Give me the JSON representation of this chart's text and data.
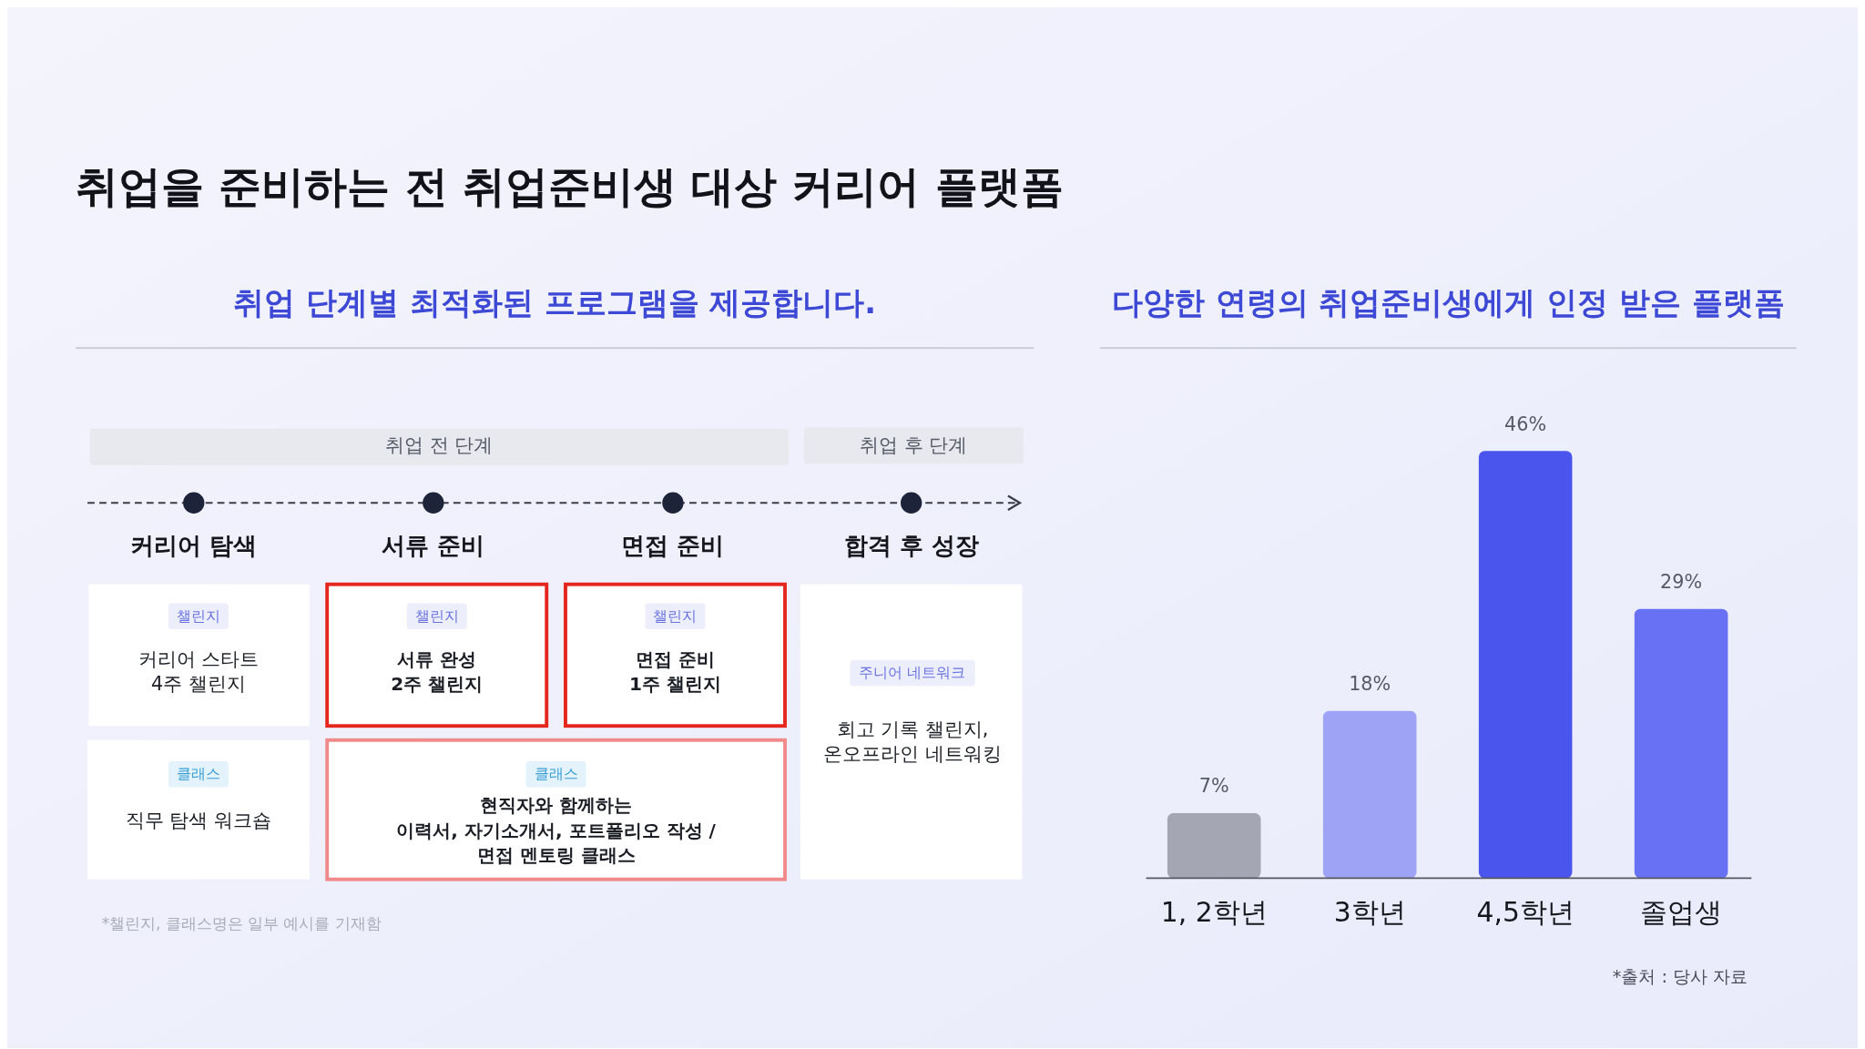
{
  "chart_data": [
    {
      "type": "other",
      "title": "취업을 준비하는 전 취업준비생 대상 커리어 플랫폼",
      "subtitle": "취업 단계별 최적화된 프로그램을 제공합니다.",
      "annotations": [
        "취업 전 단계",
        "취업 후 단계",
        "커리어 탐색",
        "서류 준비",
        "면접 준비",
        "합격 후 성장",
        "챌린지",
        "커리어 스타트\n4주 챌린지",
        "챌린지",
        "서류 완성\n2주 챌린지",
        "챌린지",
        "면접 준비\n1주 챌린지",
        "주니어 네트워크",
        "회고 기록 챌린지,\n온오프라인 네트워킹",
        "클래스",
        "직무 탐색 워크숍",
        "클래스",
        "현직자와 함께하는\n이력서, 자기소개서, 포트폴리오 작성 /\n면접 멘토링 클래스",
        "*챌린지, 클래스명은 일부 예시를 기재함"
      ]
    },
    {
      "type": "bar",
      "title": "다양한 연령의 취업준비생에게 인정 받은 플랫폼",
      "categories": [
        "1, 2학년",
        "3학년",
        "4,5학년",
        "졸업생"
      ],
      "values": [
        7,
        18,
        46,
        29
      ],
      "colors": [
        "#a4a6b3",
        "#9ea3f6",
        "#4a55ee",
        "#6870f4"
      ],
      "value_labels": [
        "7%",
        "18%",
        "46%",
        "29%"
      ],
      "annotations": [
        "*출처 : 당사 자료"
      ]
    }
  ]
}
